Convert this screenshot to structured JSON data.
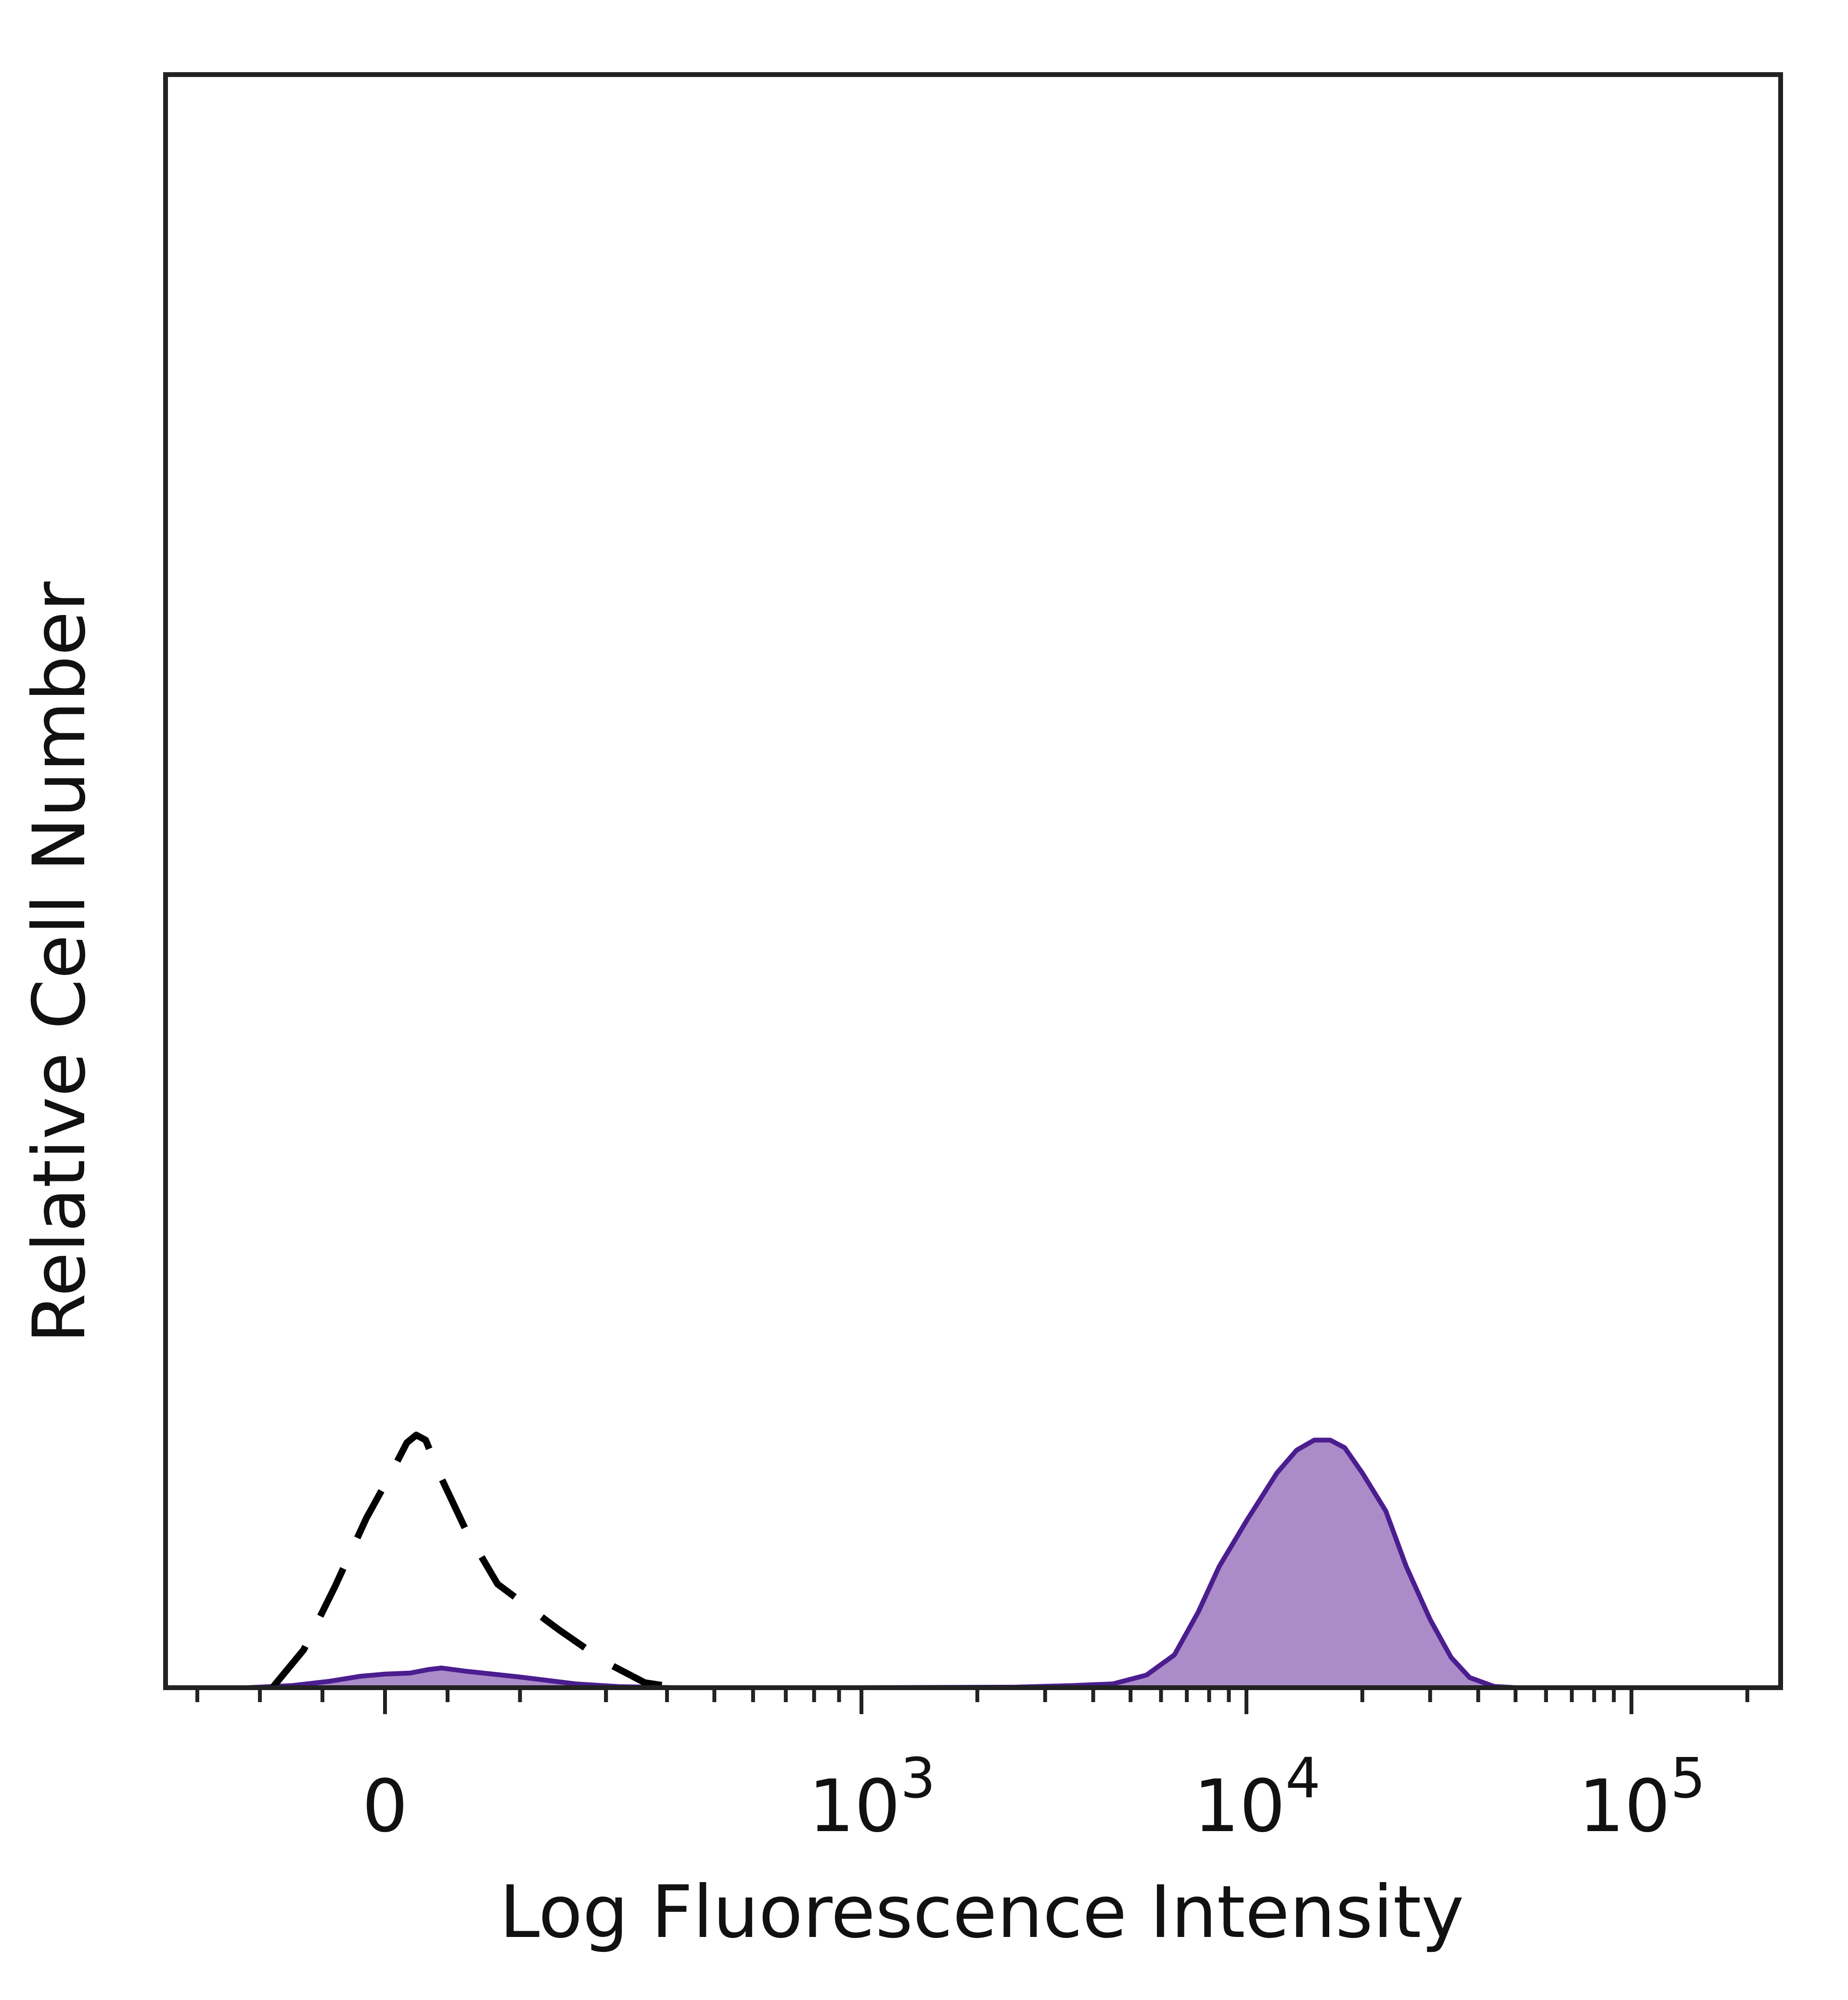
{
  "chart_data": {
    "type": "area",
    "title": "",
    "xlabel": "Log Fluorescence Intensity",
    "ylabel": "Relative Cell Number",
    "x_scale": "biexponential",
    "xlim": [
      -300,
      250000
    ],
    "ylim": [
      0,
      100
    ],
    "x_ticks": [
      {
        "value": 0,
        "base": "0",
        "exp": ""
      },
      {
        "value": 1000,
        "base": "10",
        "exp": "3"
      },
      {
        "value": 10000,
        "base": "10",
        "exp": "4"
      },
      {
        "value": 100000,
        "base": "10",
        "exp": "5"
      }
    ],
    "grid": false,
    "legend": "none",
    "series": [
      {
        "style": "dashed",
        "color": "#000000",
        "fill": "none",
        "points": [
          [
            -180,
            0
          ],
          [
            -130,
            15
          ],
          [
            -80,
            40
          ],
          [
            -30,
            67
          ],
          [
            10,
            85
          ],
          [
            35,
            97
          ],
          [
            50,
            100
          ],
          [
            65,
            98
          ],
          [
            90,
            83
          ],
          [
            130,
            62
          ],
          [
            180,
            41
          ],
          [
            240,
            23
          ],
          [
            300,
            10
          ],
          [
            360,
            2
          ],
          [
            420,
            0
          ]
        ]
      },
      {
        "style": "solid",
        "color": "#4b1d8f",
        "fill": "#ab8cc8",
        "points": [
          [
            -220,
            0
          ],
          [
            -150,
            0.8
          ],
          [
            -90,
            2.5
          ],
          [
            -40,
            4.5
          ],
          [
            0,
            5.4
          ],
          [
            40,
            5.8
          ],
          [
            70,
            7.2
          ],
          [
            90,
            7.8
          ],
          [
            130,
            6.5
          ],
          [
            200,
            4.2
          ],
          [
            260,
            1.5
          ],
          [
            320,
            0.4
          ],
          [
            420,
            0
          ],
          [
            1000,
            0
          ],
          [
            2500,
            0.2
          ],
          [
            3500,
            0.8
          ],
          [
            4500,
            1.5
          ],
          [
            5500,
            5
          ],
          [
            6500,
            13
          ],
          [
            7500,
            30
          ],
          [
            8500,
            48
          ],
          [
            10000,
            66
          ],
          [
            12000,
            85
          ],
          [
            13500,
            94
          ],
          [
            15000,
            98
          ],
          [
            16500,
            98
          ],
          [
            18000,
            95
          ],
          [
            20000,
            85
          ],
          [
            23000,
            70
          ],
          [
            26000,
            48
          ],
          [
            30000,
            27
          ],
          [
            34000,
            12
          ],
          [
            38000,
            4
          ],
          [
            44000,
            0.5
          ],
          [
            50000,
            0
          ],
          [
            100000,
            0
          ]
        ]
      }
    ]
  }
}
